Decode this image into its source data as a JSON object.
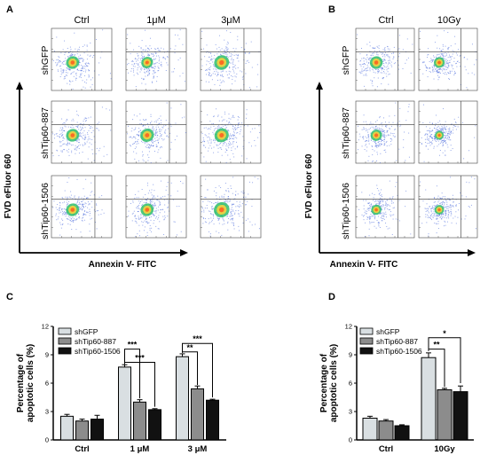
{
  "panels": {
    "A": {
      "letter": "A",
      "columns": [
        "Ctrl",
        "1μM",
        "3μM"
      ],
      "rows": [
        "shGFP",
        "shTip60-887",
        "shTip60-1506"
      ],
      "y_axis_title": "FVD eFluor 660",
      "x_axis_title": "Annexin V- FITC"
    },
    "B": {
      "letter": "B",
      "columns": [
        "Ctrl",
        "10Gy"
      ],
      "rows": [
        "shGFP",
        "shTip60-887",
        "shTip60-1506"
      ],
      "y_axis_title": "FVD eFluor 660",
      "x_axis_title": "Annexin V- FITC"
    },
    "C": {
      "letter": "C"
    },
    "D": {
      "letter": "D"
    }
  },
  "chart_data": [
    {
      "panel": "C",
      "type": "bar",
      "categories": [
        "Ctrl",
        "1 μM",
        "3 μM"
      ],
      "ylabel": "Percentage of apoptotic cells (%)",
      "ylim": [
        0,
        12
      ],
      "yticks": [
        0,
        3,
        6,
        9,
        12
      ],
      "legend_position": "top-left",
      "series": [
        {
          "name": "shGFP",
          "color": "#d9dfe2",
          "values": [
            2.5,
            7.7,
            8.8
          ],
          "errors": [
            0.2,
            0.25,
            0.3
          ]
        },
        {
          "name": "shTip60-887",
          "color": "#8c8c8c",
          "values": [
            2.0,
            4.0,
            5.4
          ],
          "errors": [
            0.2,
            0.25,
            0.3
          ]
        },
        {
          "name": "shTip60-1506",
          "color": "#111111",
          "values": [
            2.2,
            3.2,
            4.2
          ],
          "errors": [
            0.4,
            0.1,
            0.1
          ]
        }
      ],
      "significance": [
        "***",
        "***",
        "***",
        "**"
      ]
    },
    {
      "panel": "D",
      "type": "bar",
      "categories": [
        "Ctrl",
        "10Gy"
      ],
      "ylabel": "Percentage of apoptotic cells (%)",
      "ylim": [
        0,
        12
      ],
      "yticks": [
        0,
        3,
        6,
        9,
        12
      ],
      "legend_position": "top-left",
      "series": [
        {
          "name": "shGFP",
          "color": "#d9dfe2",
          "values": [
            2.3,
            8.7
          ],
          "errors": [
            0.2,
            0.5
          ]
        },
        {
          "name": "shTip60-887",
          "color": "#8c8c8c",
          "values": [
            2.0,
            5.3
          ],
          "errors": [
            0.15,
            0.15
          ]
        },
        {
          "name": "shTip60-1506",
          "color": "#111111",
          "values": [
            1.5,
            5.1
          ],
          "errors": [
            0.1,
            0.6
          ]
        }
      ],
      "significance": [
        "*",
        "**"
      ]
    }
  ]
}
